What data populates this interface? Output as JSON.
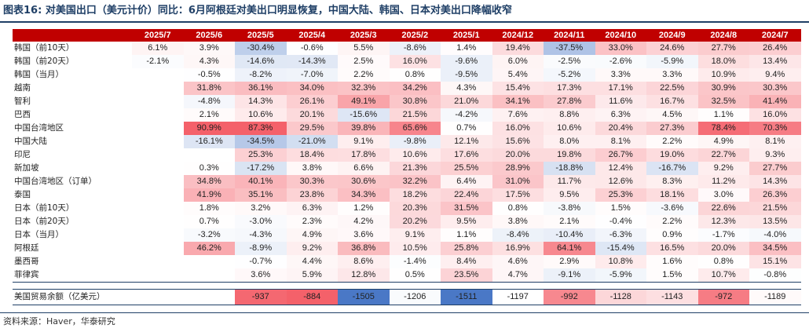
{
  "title": "图表16:  对美国出口（美元计价）同比：6月阿根廷对美出口明显恢复，中国大陆、韩国、日本对美出口降幅收窄",
  "footer": "资料来源：Haver，华泰研究",
  "colors": {
    "header_bg": "#c00000",
    "text_dark": "#1f3f66",
    "pos_strong": "#f4616a",
    "neg_strong": "#4a78c6"
  },
  "columns": [
    "2025/7",
    "2025/6",
    "2025/5",
    "2025/4",
    "2025/3",
    "2025/2",
    "2025/1",
    "2024/12",
    "2024/11",
    "2024/10",
    "2024/9",
    "2024/8",
    "2024/7"
  ],
  "rows": [
    {
      "label": "韩国（前10天）",
      "values": [
        "6.1%",
        "3.9%",
        "-30.4%",
        "-0.6%",
        "5.5%",
        "-8.6%",
        "1.4%",
        "19.4%",
        "-37.5%",
        "33.0%",
        "24.6%",
        "27.7%",
        "26.4%"
      ]
    },
    {
      "label": "韩国（前20天）",
      "values": [
        "-2.1%",
        "4.3%",
        "-14.6%",
        "-14.3%",
        "2.5%",
        "16.0%",
        "-9.6%",
        "6.0%",
        "-2.5%",
        "-2.6%",
        "-5.9%",
        "18.0%",
        "13.4%"
      ]
    },
    {
      "label": "韩国（当月）",
      "values": [
        "",
        "-0.5%",
        "-8.2%",
        "-7.0%",
        "2.2%",
        "0.8%",
        "-9.5%",
        "5.4%",
        "-5.2%",
        "3.3%",
        "3.3%",
        "10.9%",
        "9.4%"
      ]
    },
    {
      "label": "越南",
      "values": [
        "",
        "31.8%",
        "36.1%",
        "34.0%",
        "32.3%",
        "34.2%",
        "4.3%",
        "15.4%",
        "17.3%",
        "17.1%",
        "22.5%",
        "30.9%",
        "30.3%"
      ]
    },
    {
      "label": "智利",
      "values": [
        "",
        "-4.8%",
        "14.3%",
        "26.1%",
        "49.1%",
        "30.8%",
        "21.0%",
        "34.1%",
        "27.8%",
        "11.6%",
        "16.7%",
        "32.5%",
        "41.4%"
      ]
    },
    {
      "label": "巴西",
      "values": [
        "",
        "2.1%",
        "10.6%",
        "20.1%",
        "-15.6%",
        "21.5%",
        "-4.2%",
        "7.6%",
        "8.8%",
        "6.3%",
        "4.5%",
        "1.1%",
        "16.0%"
      ]
    },
    {
      "label": "中国台湾地区",
      "values": [
        "",
        "90.9%",
        "87.3%",
        "29.5%",
        "39.8%",
        "65.6%",
        "0.7%",
        "16.0%",
        "10.6%",
        "20.4%",
        "27.3%",
        "78.4%",
        "70.3%"
      ]
    },
    {
      "label": "中国大陆",
      "values": [
        "",
        "-16.1%",
        "-34.5%",
        "-21.0%",
        "9.1%",
        "-9.8%",
        "12.1%",
        "15.6%",
        "8.0%",
        "8.1%",
        "2.2%",
        "4.9%",
        "8.1%"
      ]
    },
    {
      "label": "印尼",
      "values": [
        "",
        "",
        "25.3%",
        "18.4%",
        "17.8%",
        "10.6%",
        "17.6%",
        "20.0%",
        "19.8%",
        "26.7%",
        "19.0%",
        "22.7%",
        "9.3%"
      ]
    },
    {
      "label": "新加坡",
      "values": [
        "",
        "0.3%",
        "-17.2%",
        "3.8%",
        "6.6%",
        "21.3%",
        "25.5%",
        "28.9%",
        "-18.8%",
        "12.4%",
        "-16.7%",
        "9.2%",
        "27.7%"
      ]
    },
    {
      "label": "中国台湾地区（订单）",
      "values": [
        "",
        "34.8%",
        "40.1%",
        "30.3%",
        "30.6%",
        "32.2%",
        "6.4%",
        "31.0%",
        "11.7%",
        "12.6%",
        "8.3%",
        "11.2%",
        "14.3%"
      ]
    },
    {
      "label": "泰国",
      "values": [
        "",
        "41.9%",
        "35.1%",
        "23.8%",
        "34.3%",
        "18.2%",
        "22.4%",
        "17.5%",
        "9.5%",
        "25.3%",
        "18.1%",
        "3.0%",
        "26.3%"
      ]
    },
    {
      "label": "日本（前10天）",
      "values": [
        "",
        "1.8%",
        "3.2%",
        "6.3%",
        "1.2%",
        "20.3%",
        "31.5%",
        "0.8%",
        "-3.8%",
        "1.5%",
        "-3.6%",
        "22.6%",
        "21.5%"
      ]
    },
    {
      "label": "日本（前20天）",
      "values": [
        "",
        "0.7%",
        "-3.0%",
        "2.3%",
        "4.2%",
        "20.2%",
        "9.5%",
        "3.8%",
        "2.1%",
        "-0.4%",
        "2.2%",
        "12.3%",
        "13.5%"
      ]
    },
    {
      "label": "日本（当月）",
      "values": [
        "",
        "-3.2%",
        "-4.3%",
        "4.9%",
        "3.6%",
        "9.1%",
        "1.1%",
        "-8.4%",
        "-10.4%",
        "-6.3%",
        "0.9%",
        "-1.7%",
        "-4.0%"
      ]
    },
    {
      "label": "阿根廷",
      "values": [
        "",
        "46.2%",
        "-8.9%",
        "9.2%",
        "36.8%",
        "10.5%",
        "25.8%",
        "16.9%",
        "64.1%",
        "-15.4%",
        "16.5%",
        "20.0%",
        "34.5%"
      ]
    },
    {
      "label": "墨西哥",
      "values": [
        "",
        "",
        "-0.7%",
        "4.4%",
        "8.6%",
        "-1.4%",
        "8.4%",
        "4.6%",
        "2.9%",
        "10.8%",
        "1.6%",
        "0.8%",
        "15.1%"
      ]
    },
    {
      "label": "菲律宾",
      "values": [
        "",
        "",
        "3.6%",
        "5.9%",
        "12.8%",
        "0.5%",
        "23.5%",
        "4.7%",
        "-9.1%",
        "-5.9%",
        "1.5%",
        "10.7%",
        "-0.8%"
      ]
    }
  ],
  "trade_row": {
    "label": "美国贸易余额（亿美元）",
    "values": [
      "",
      "",
      "-937",
      "-884",
      "-1505",
      "-1206",
      "-1511",
      "-1197",
      "-992",
      "-1128",
      "-1143",
      "-972",
      "-1189"
    ]
  }
}
